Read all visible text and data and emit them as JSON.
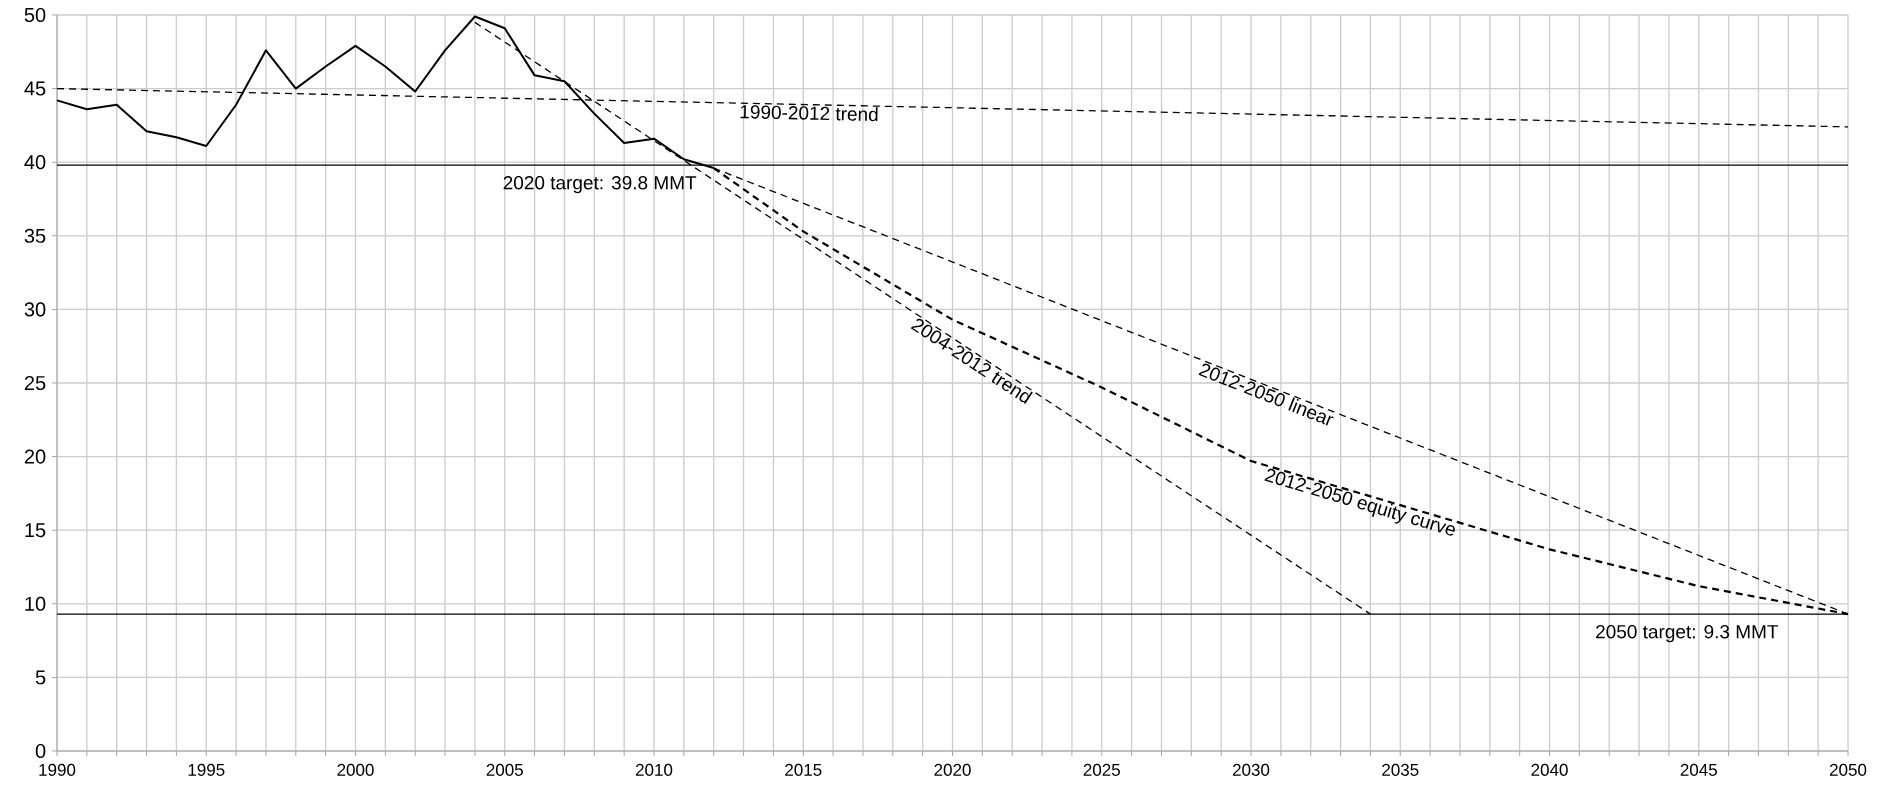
{
  "chart_data": {
    "type": "line",
    "series": [
      {
        "color": "#000000",
        "line_style": "solid",
        "x": [
          1990,
          1991,
          1992,
          1993,
          1994,
          1995,
          1996,
          1997,
          1998,
          1999,
          2000,
          2001,
          2002,
          2003,
          2004,
          2005,
          2006,
          2007,
          2008,
          2009,
          2010,
          2011,
          2012
        ],
        "values": [
          44.2,
          43.6,
          43.9,
          42.1,
          41.7,
          41.1,
          43.9,
          47.6,
          45.0,
          46.5,
          47.9,
          46.5,
          44.8,
          47.6,
          49.9,
          49.1,
          45.9,
          45.5,
          43.3,
          41.3,
          41.6,
          40.2,
          39.6
        ]
      },
      {
        "name": "1990-2012 trend",
        "color": "#000000",
        "line_style": "dashed",
        "x": [
          1990,
          2050
        ],
        "values": [
          45.0,
          42.4
        ]
      },
      {
        "name": "2004-2012 trend",
        "color": "#000000",
        "line_style": "dashed",
        "x": [
          2004,
          2034
        ],
        "values": [
          49.5,
          9.3
        ]
      },
      {
        "name": "2012-2050 linear",
        "color": "#000000",
        "line_style": "dashed",
        "x": [
          2012,
          2050
        ],
        "values": [
          39.6,
          9.3
        ]
      },
      {
        "name": "2012-2050 equity curve",
        "color": "#000000",
        "line_style": "dashed",
        "x": [
          2012,
          2015,
          2020,
          2025,
          2030,
          2035,
          2040,
          2045,
          2050
        ],
        "values": [
          39.6,
          35.3,
          29.3,
          24.7,
          19.7,
          16.7,
          13.7,
          11.2,
          9.3
        ]
      }
    ],
    "ref_lines": [
      {
        "axis": "y",
        "value": 39.8,
        "label": "2020 target: 39.8 MMT",
        "color": "#000000"
      },
      {
        "axis": "y",
        "value": 9.3,
        "label": "2050 target: 9.3 MMT",
        "color": "#000000"
      }
    ],
    "xlim": [
      1990,
      2050
    ],
    "ylim": [
      0,
      50
    ],
    "xticks": [
      1990,
      {
        "value": 1991,
        "label": null
      },
      {
        "value": 1992,
        "label": null
      },
      {
        "value": 1993,
        "label": null
      },
      {
        "value": 1994,
        "label": null
      },
      1995,
      {
        "value": 1996,
        "label": null
      },
      {
        "value": 1997,
        "label": null
      },
      {
        "value": 1998,
        "label": null
      },
      {
        "value": 1999,
        "label": null
      },
      2000,
      {
        "value": 2001,
        "label": null
      },
      {
        "value": 2002,
        "label": null
      },
      {
        "value": 2003,
        "label": null
      },
      {
        "value": 2004,
        "label": null
      },
      2005,
      {
        "value": 2006,
        "label": null
      },
      {
        "value": 2007,
        "label": null
      },
      {
        "value": 2008,
        "label": null
      },
      {
        "value": 2009,
        "label": null
      },
      2010,
      {
        "value": 2011,
        "label": null
      },
      {
        "value": 2012,
        "label": null
      },
      {
        "value": 2013,
        "label": null
      },
      {
        "value": 2014,
        "label": null
      },
      2015,
      {
        "value": 2016,
        "label": null
      },
      {
        "value": 2017,
        "label": null
      },
      {
        "value": 2018,
        "label": null
      },
      {
        "value": 2019,
        "label": null
      },
      2020,
      {
        "value": 2021,
        "label": null
      },
      {
        "value": 2022,
        "label": null
      },
      {
        "value": 2023,
        "label": null
      },
      {
        "value": 2024,
        "label": null
      },
      2025,
      {
        "value": 2026,
        "label": null
      },
      {
        "value": 2027,
        "label": null
      },
      {
        "value": 2028,
        "label": null
      },
      {
        "value": 2029,
        "label": null
      },
      2030,
      {
        "value": 2031,
        "label": null
      },
      {
        "value": 2032,
        "label": null
      },
      {
        "value": 2033,
        "label": null
      },
      {
        "value": 2034,
        "label": null
      },
      2035,
      {
        "value": 2036,
        "label": null
      },
      {
        "value": 2037,
        "label": null
      },
      {
        "value": 2038,
        "label": null
      },
      {
        "value": 2039,
        "label": null
      },
      2040,
      {
        "value": 2041,
        "label": null
      },
      {
        "value": 2042,
        "label": null
      },
      {
        "value": 2043,
        "label": null
      },
      {
        "value": 2044,
        "label": null
      },
      2045,
      {
        "value": 2046,
        "label": null
      },
      {
        "value": 2047,
        "label": null
      },
      {
        "value": 2048,
        "label": null
      },
      {
        "value": 2049,
        "label": null
      },
      2050
    ],
    "yticks": [
      0,
      5,
      10,
      15,
      20,
      25,
      30,
      35,
      40,
      45,
      50
    ],
    "grid": true,
    "legend": false,
    "marker": "none"
  }
}
